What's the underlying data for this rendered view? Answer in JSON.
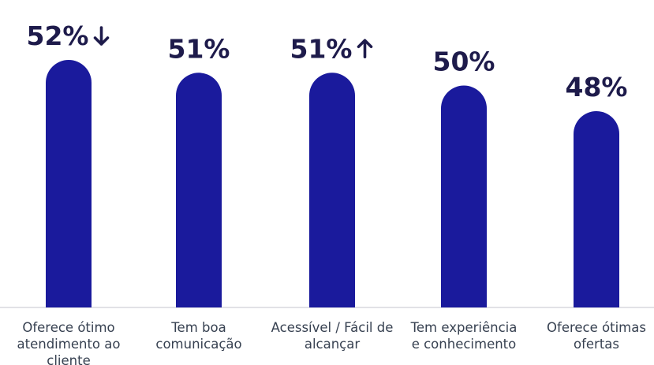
{
  "chart_data": {
    "type": "bar",
    "categories": [
      [
        "Oferece ótimo",
        "atendimento ao",
        "cliente"
      ],
      [
        "Tem boa",
        "comunicação"
      ],
      [
        "Acessível / Fácil de",
        "alcançar"
      ],
      [
        "Tem experiência",
        "e conhecimento"
      ],
      [
        "Oferece ótimas",
        "ofertas"
      ]
    ],
    "values": [
      52,
      51,
      51,
      50,
      48
    ],
    "value_labels": [
      "52%",
      "51%",
      "51%",
      "50%",
      "48%"
    ],
    "trend": [
      "down",
      null,
      "up",
      null,
      null
    ],
    "bar_color": "#1a1a9c",
    "baseline_color": "#d8d8de",
    "label_color": "#1e1b4b",
    "category_color": "#374151"
  }
}
